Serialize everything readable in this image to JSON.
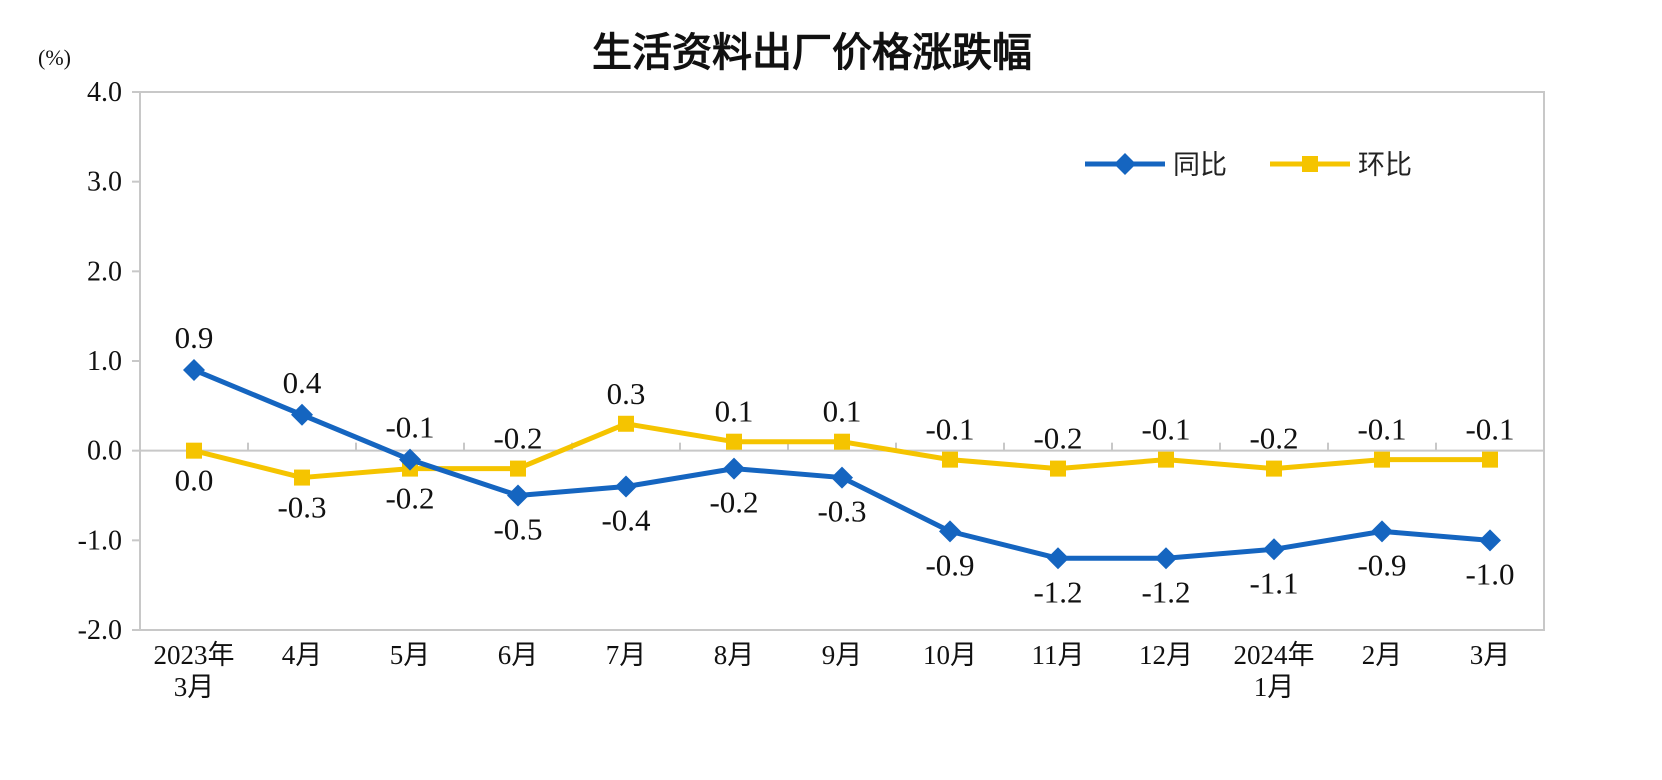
{
  "chart_data": {
    "type": "line",
    "title": "生活资料出厂价格涨跌幅",
    "unit_label": "(%)",
    "categories": [
      [
        "2023年",
        "3月"
      ],
      [
        "4月"
      ],
      [
        "5月"
      ],
      [
        "6月"
      ],
      [
        "7月"
      ],
      [
        "8月"
      ],
      [
        "9月"
      ],
      [
        "10月"
      ],
      [
        "11月"
      ],
      [
        "12月"
      ],
      [
        "2024年",
        "1月"
      ],
      [
        "2月"
      ],
      [
        "3月"
      ]
    ],
    "ylim": [
      -2.0,
      4.0
    ],
    "yticks": [
      "4.0",
      "3.0",
      "2.0",
      "1.0",
      "0.0",
      "-1.0",
      "-2.0"
    ],
    "ytick_values": [
      4,
      3,
      2,
      1,
      0,
      -1,
      -2
    ],
    "grid": false,
    "legend_position": "top-right",
    "series": [
      {
        "name": "同比",
        "color": "#1565c0",
        "marker": "diamond",
        "values": [
          0.9,
          0.4,
          -0.1,
          -0.5,
          -0.4,
          -0.2,
          -0.3,
          -0.9,
          -1.2,
          -1.2,
          -1.1,
          -0.9,
          -1.0
        ],
        "labels": [
          "0.9",
          "0.4",
          "-0.1",
          "-0.5",
          "-0.4",
          "-0.2",
          "-0.3",
          "-0.9",
          "-1.2",
          "-1.2",
          "-1.1",
          "-0.9",
          "-1.0"
        ]
      },
      {
        "name": "环比",
        "color": "#f5c400",
        "marker": "square",
        "values": [
          0.0,
          -0.3,
          -0.2,
          -0.2,
          0.3,
          0.1,
          0.1,
          -0.1,
          -0.2,
          -0.1,
          -0.2,
          -0.1,
          -0.1
        ],
        "labels": [
          "0.0",
          "-0.3",
          "-0.2",
          "-0.2",
          "0.3",
          "0.1",
          "0.1",
          "-0.1",
          "-0.2",
          "-0.1",
          "-0.2",
          "-0.1",
          "-0.1"
        ]
      }
    ]
  }
}
